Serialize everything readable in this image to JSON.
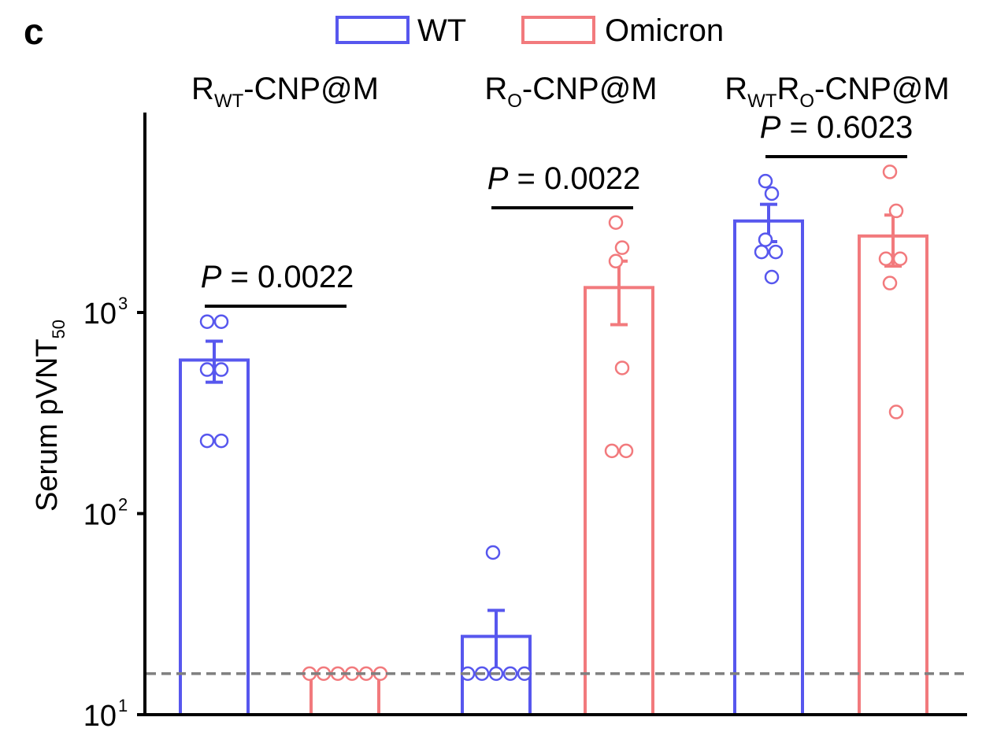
{
  "panel_label": "c",
  "colors": {
    "WT": "#5757ee",
    "Omicron": "#f27a7d",
    "axis": "#000000",
    "lod": "#7f7f7f"
  },
  "chart_data": {
    "type": "bar",
    "scale": "log",
    "ylim": [
      10,
      10000
    ],
    "y_ticks": [
      {
        "value": 10,
        "base": "10",
        "exp": "1"
      },
      {
        "value": 100,
        "base": "10",
        "exp": "2"
      },
      {
        "value": 1000,
        "base": "10",
        "exp": "3"
      }
    ],
    "ylabel": {
      "main": "Serum pVNT",
      "sub": "50"
    },
    "legend": {
      "placement": "top",
      "entries": [
        {
          "key": "WT",
          "label": "WT"
        },
        {
          "key": "Omicron",
          "label": "Omicron"
        }
      ]
    },
    "detection_limit": 16,
    "groups": [
      {
        "label": {
          "main": "R",
          "sub": "WT",
          "main2": "",
          "sub2": "",
          "tail": "-CNP@M"
        },
        "bars": [
          {
            "series": "WT",
            "mean": 580,
            "err_low": 450,
            "err_high": 720,
            "points": [
              900,
              900,
              520,
              520,
              230,
              230
            ]
          },
          {
            "series": "Omicron",
            "mean": 16,
            "err_low": 16,
            "err_high": 16,
            "points": [
              16,
              16,
              16,
              16,
              16,
              16
            ]
          }
        ],
        "comparison": {
          "prefix": "P",
          "text": " = 0.0022"
        }
      },
      {
        "label": {
          "main": "R",
          "sub": "O",
          "main2": "",
          "sub2": "",
          "tail": "-CNP@M"
        },
        "bars": [
          {
            "series": "WT",
            "mean": 24.5,
            "err_low": 16,
            "err_high": 33,
            "points": [
              64,
              16,
              16,
              16,
              16,
              16
            ]
          },
          {
            "series": "Omicron",
            "mean": 1330,
            "err_low": 870,
            "err_high": 1800,
            "points": [
              2800,
              2100,
              1800,
              530,
              205,
              205
            ]
          }
        ],
        "comparison": {
          "prefix": "P",
          "text": " = 0.0022"
        }
      },
      {
        "label": {
          "main": "R",
          "sub": "WT",
          "main2": "R",
          "sub2": "O",
          "tail": "-CNP@M"
        },
        "bars": [
          {
            "series": "WT",
            "mean": 2850,
            "err_low": 2250,
            "err_high": 3450,
            "points": [
              4500,
              3900,
              2300,
              2000,
              2000,
              1500
            ]
          },
          {
            "series": "Omicron",
            "mean": 2400,
            "err_low": 1700,
            "err_high": 3050,
            "points": [
              5000,
              3200,
              1850,
              1850,
              1400,
              320
            ]
          }
        ],
        "comparison": {
          "prefix": "P",
          "text": " = 0.6023"
        }
      }
    ]
  }
}
